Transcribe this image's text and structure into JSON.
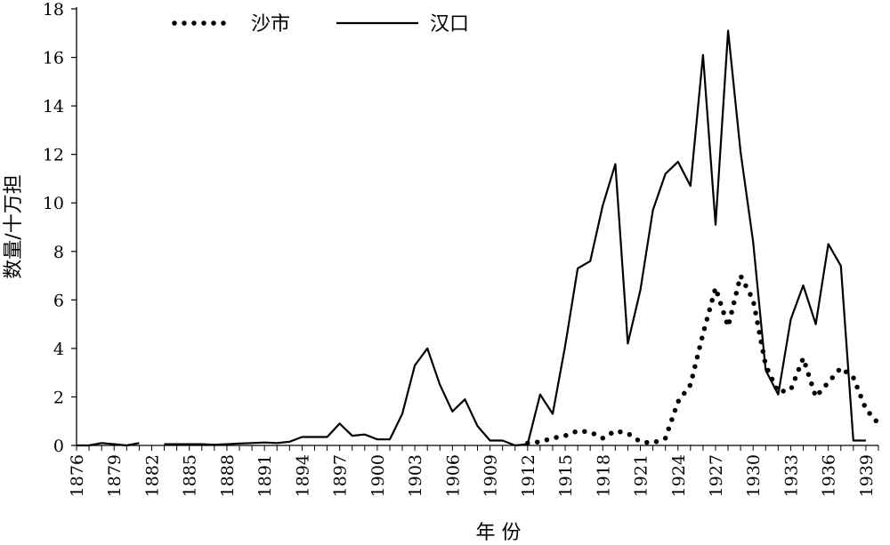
{
  "chart_data": {
    "type": "line",
    "xlabel": "年 份",
    "ylabel": "数量/十万担",
    "ylim": [
      0,
      18
    ],
    "y_ticks": [
      "0",
      "2",
      "4",
      "6",
      "8",
      "10",
      "12",
      "14",
      "16",
      "18"
    ],
    "x_ticks": [
      "1876",
      "1879",
      "1882",
      "1885",
      "1888",
      "1891",
      "1894",
      "1897",
      "1900",
      "1903",
      "1906",
      "1909",
      "1912",
      "1915",
      "1918",
      "1921",
      "1924",
      "1927",
      "1930",
      "1933",
      "1936",
      "1939"
    ],
    "grid": false,
    "legend_position": "top-left",
    "series": [
      {
        "name": "沙市",
        "style": "dotted",
        "color": "#000000",
        "points": [
          [
            1912,
            0.1
          ],
          [
            1913,
            0.15
          ],
          [
            1914,
            0.3
          ],
          [
            1915,
            0.4
          ],
          [
            1916,
            0.6
          ],
          [
            1917,
            0.55
          ],
          [
            1918,
            0.3
          ],
          [
            1919,
            0.6
          ],
          [
            1920,
            0.5
          ],
          [
            1921,
            0.15
          ],
          [
            1922,
            0.1
          ],
          [
            1923,
            0.3
          ],
          [
            1924,
            1.8
          ],
          [
            1925,
            2.5
          ],
          [
            1926,
            4.6
          ],
          [
            1927,
            6.5
          ],
          [
            1928,
            4.9
          ],
          [
            1929,
            7.0
          ],
          [
            1930,
            6.0
          ],
          [
            1931,
            3.3
          ],
          [
            1932,
            2.2
          ],
          [
            1933,
            2.3
          ],
          [
            1934,
            3.6
          ],
          [
            1935,
            2.0
          ],
          [
            1936,
            2.6
          ],
          [
            1937,
            3.2
          ],
          [
            1938,
            2.8
          ],
          [
            1939,
            1.5
          ],
          [
            1940,
            0.9
          ]
        ]
      },
      {
        "name": "汉口",
        "style": "solid",
        "color": "#000000",
        "segments": [
          [
            [
              1876,
              0.0
            ],
            [
              1877,
              0.0
            ],
            [
              1878,
              0.1
            ],
            [
              1879,
              0.05
            ],
            [
              1880,
              0.0
            ],
            [
              1881,
              0.1
            ]
          ],
          [
            [
              1883,
              0.05
            ],
            [
              1884,
              0.05
            ],
            [
              1885,
              0.05
            ],
            [
              1886,
              0.05
            ],
            [
              1887,
              0.03
            ],
            [
              1888,
              0.05
            ],
            [
              1889,
              0.08
            ],
            [
              1890,
              0.1
            ],
            [
              1891,
              0.12
            ],
            [
              1892,
              0.1
            ],
            [
              1893,
              0.15
            ],
            [
              1894,
              0.35
            ],
            [
              1895,
              0.35
            ],
            [
              1896,
              0.35
            ],
            [
              1897,
              0.9
            ],
            [
              1898,
              0.4
            ],
            [
              1899,
              0.45
            ],
            [
              1900,
              0.25
            ],
            [
              1901,
              0.25
            ],
            [
              1902,
              1.3
            ],
            [
              1903,
              3.3
            ],
            [
              1904,
              4.0
            ],
            [
              1905,
              2.5
            ],
            [
              1906,
              1.4
            ],
            [
              1907,
              1.9
            ],
            [
              1908,
              0.8
            ],
            [
              1909,
              0.2
            ],
            [
              1910,
              0.2
            ],
            [
              1911,
              0.0
            ],
            [
              1912,
              0.05
            ],
            [
              1913,
              2.1
            ],
            [
              1914,
              1.3
            ],
            [
              1915,
              4.1
            ],
            [
              1916,
              7.3
            ],
            [
              1917,
              7.6
            ],
            [
              1918,
              9.9
            ],
            [
              1919,
              11.6
            ],
            [
              1920,
              4.2
            ],
            [
              1921,
              6.4
            ],
            [
              1922,
              9.7
            ],
            [
              1923,
              11.2
            ],
            [
              1924,
              11.7
            ],
            [
              1925,
              10.7
            ],
            [
              1926,
              16.1
            ],
            [
              1927,
              9.1
            ],
            [
              1928,
              17.1
            ],
            [
              1929,
              12.1
            ],
            [
              1930,
              8.4
            ],
            [
              1931,
              3.1
            ],
            [
              1932,
              2.1
            ],
            [
              1933,
              5.2
            ],
            [
              1934,
              6.6
            ],
            [
              1935,
              5.0
            ],
            [
              1936,
              8.3
            ],
            [
              1937,
              7.4
            ],
            [
              1938,
              0.2
            ],
            [
              1939,
              0.2
            ]
          ]
        ]
      }
    ]
  }
}
